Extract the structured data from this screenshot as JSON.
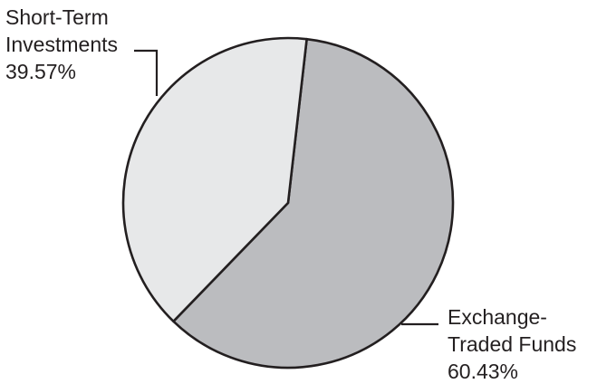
{
  "chart_data": {
    "type": "pie",
    "slices": [
      {
        "key": "etf",
        "label_lines": [
          "Exchange-",
          "Traded Funds",
          "60.43%"
        ],
        "value": 60.43,
        "color": "#bbbcbf"
      },
      {
        "key": "sti",
        "label_lines": [
          "Short-Term",
          "Investments",
          "39.57%"
        ],
        "value": 39.57,
        "color": "#e7e8e9"
      }
    ],
    "title": "",
    "legend": "none",
    "outline_color": "#231f20"
  }
}
